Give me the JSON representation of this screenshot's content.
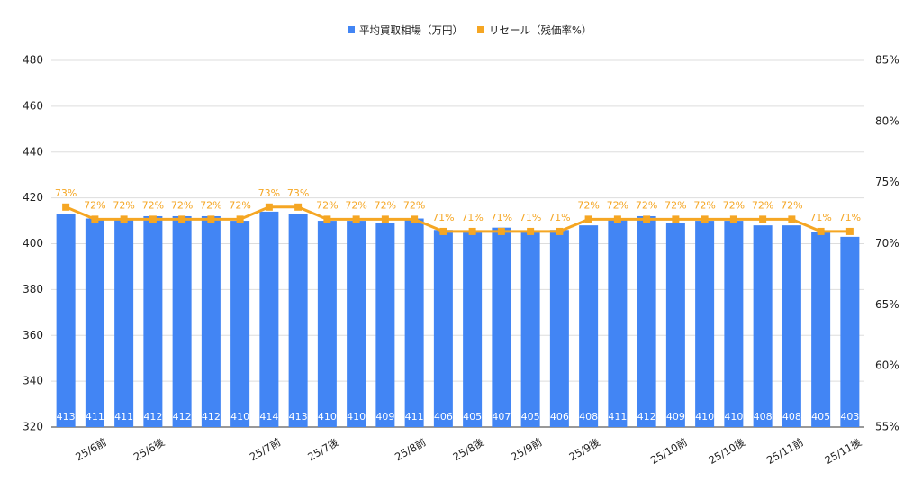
{
  "chart_data": {
    "type": "bar_line",
    "categories": [
      null,
      "25/6前",
      null,
      "25/6後",
      null,
      null,
      null,
      "25/7前",
      null,
      "25/7後",
      null,
      null,
      "25/8前",
      null,
      "25/8後",
      null,
      "25/9前",
      null,
      "25/9後",
      null,
      null,
      "25/10前",
      null,
      "25/10後",
      null,
      "25/11前",
      null,
      "25/11後"
    ],
    "series": [
      {
        "name": "平均買取相場（万円）",
        "color": "#4285f4",
        "type": "bar",
        "values": [
          413,
          411,
          411,
          412,
          412,
          412,
          410,
          414,
          413,
          410,
          410,
          409,
          411,
          406,
          405,
          407,
          405,
          406,
          408,
          411,
          412,
          409,
          410,
          410,
          408,
          408,
          405,
          403
        ]
      },
      {
        "name": "リセール（残価率%）",
        "color": "#f5a623",
        "type": "line",
        "axis": "y2",
        "values": [
          73,
          72,
          72,
          72,
          72,
          72,
          72,
          73,
          73,
          72,
          72,
          72,
          72,
          71,
          71,
          71,
          71,
          71,
          72,
          72,
          72,
          72,
          72,
          72,
          72,
          72,
          71,
          71
        ],
        "value_labels": [
          "73%",
          "72%",
          "72%",
          "72%",
          "72%",
          "72%",
          "72%",
          "73%",
          "73%",
          "72%",
          "72%",
          "72%",
          "72%",
          "71%",
          "71%",
          "71%",
          "71%",
          "71%",
          "72%",
          "72%",
          "72%",
          "72%",
          "72%",
          "72%",
          "72%",
          "72%",
          "71%",
          "71%"
        ]
      }
    ],
    "ylim": [
      320,
      480
    ],
    "yticks": [
      320,
      340,
      360,
      380,
      400,
      420,
      440,
      460,
      480
    ],
    "y2lim": [
      55,
      85
    ],
    "y2ticks": [
      {
        "value": 55,
        "label": "55%"
      },
      {
        "value": 60,
        "label": "60%"
      },
      {
        "value": 65,
        "label": "65%"
      },
      {
        "value": 70,
        "label": "70%"
      },
      {
        "value": 75,
        "label": "75%"
      },
      {
        "value": 80,
        "label": "80%"
      },
      {
        "value": 85,
        "label": "85%"
      }
    ],
    "grid": true,
    "legend": "top"
  }
}
